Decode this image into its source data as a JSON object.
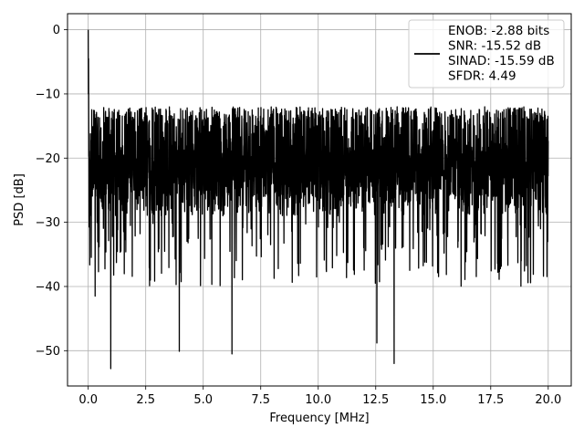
{
  "chart_data": {
    "type": "line",
    "title": "",
    "xlabel": "Frequency [MHz]",
    "ylabel": "PSD [dB]",
    "xlim": [
      -0.9,
      21.0
    ],
    "ylim": [
      -55.5,
      2.5
    ],
    "xticks": [
      0.0,
      2.5,
      5.0,
      7.5,
      10.0,
      12.5,
      15.0,
      17.5,
      20.0
    ],
    "xtick_labels": [
      "0.0",
      "2.5",
      "5.0",
      "7.5",
      "10.0",
      "12.5",
      "15.0",
      "17.5",
      "20.0"
    ],
    "yticks": [
      0,
      -10,
      -20,
      -30,
      -40,
      -50
    ],
    "ytick_labels": [
      "0",
      "−10",
      "−20",
      "−30",
      "−40",
      "−50"
    ],
    "grid": true,
    "legend_position": "top-right",
    "legend_lines": [
      "ENOB: -2.88 bits",
      "SNR: -15.52 dB",
      "SINAD: -15.59 dB",
      "SFDR: 4.49"
    ],
    "series": [
      {
        "color": "#000000",
        "x_range": [
          0.0,
          20.0
        ],
        "baseline_db": -22,
        "noise_band_db": [
          -29,
          -14
        ],
        "peak": {
          "x": 0.0,
          "y": 0.0
        },
        "min_dips": [
          {
            "x": 0.98,
            "y": -52.8
          },
          {
            "x": 3.96,
            "y": -50.1
          },
          {
            "x": 6.25,
            "y": -50.5
          },
          {
            "x": 13.3,
            "y": -52.0
          },
          {
            "x": 12.55,
            "y": -48.8
          },
          {
            "x": 0.3,
            "y": -41.5
          }
        ]
      }
    ]
  },
  "colors": {
    "background": "#ffffff",
    "line": "#000000",
    "grid": "#b0b0b0",
    "legend_border": "#cccccc"
  }
}
